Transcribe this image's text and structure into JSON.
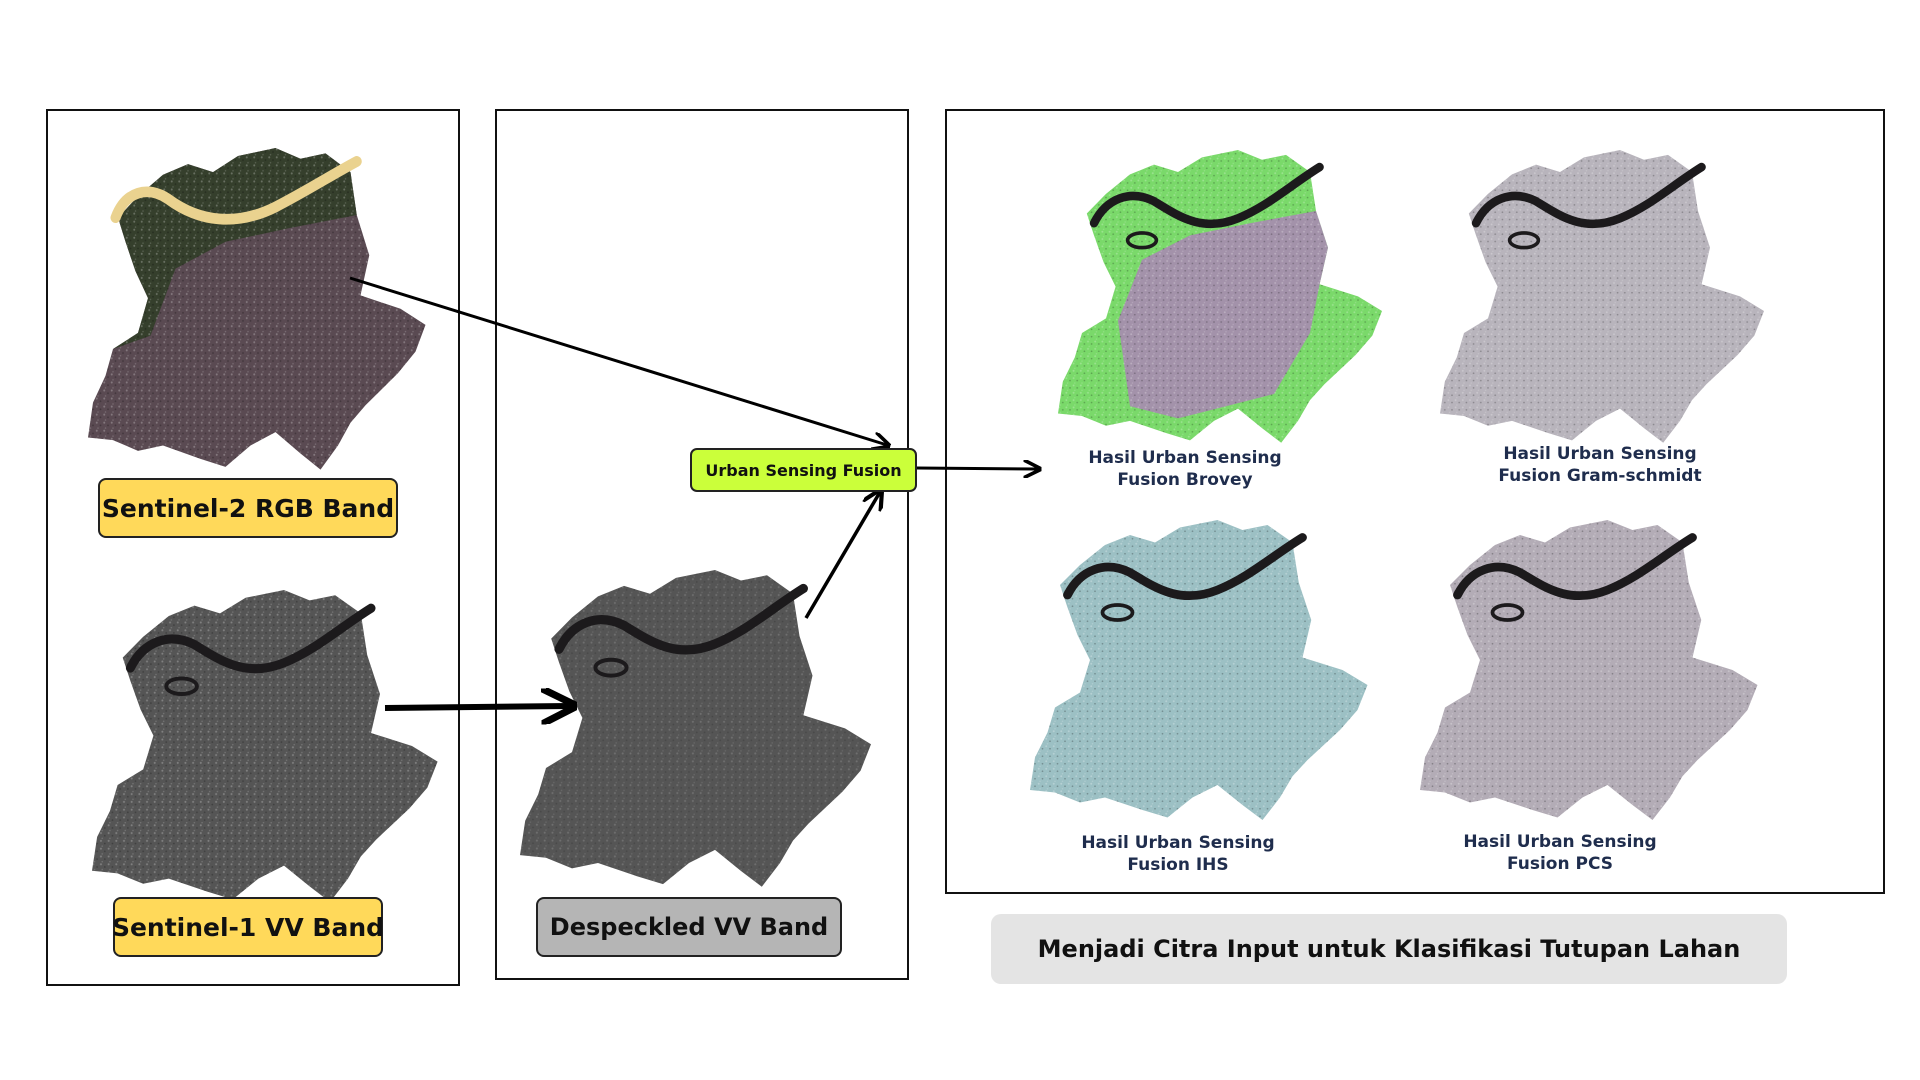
{
  "labels": {
    "sentinel2": "Sentinel-2 RGB Band",
    "sentinel1": "Sentinel-1 VV Band",
    "despeckled": "Despeckled VV Band",
    "fusion": "Urban Sensing Fusion"
  },
  "results": [
    {
      "line1": "Hasil Urban Sensing",
      "line2": "Fusion Brovey"
    },
    {
      "line1": "Hasil Urban Sensing",
      "line2": "Fusion Gram-schmidt"
    },
    {
      "line1": "Hasil Urban Sensing",
      "line2": "Fusion IHS"
    },
    {
      "line1": "Hasil Urban Sensing",
      "line2": "Fusion PCS"
    }
  ],
  "banner": "Menjadi Citra Input untuk Klasifikasi Tutupan Lahan",
  "colors": {
    "sentinel_label": "#ffd95a",
    "despeckled_label": "#b5b5b5",
    "fusion_label": "#cbff3a",
    "banner_bg": "#e4e4e4",
    "caption_text": "#1f2d4d",
    "river_s2": "#ead28f",
    "map_rgb": "#5a4a52",
    "map_rgb_forest": "#2f3d26",
    "map_sar": "#555555",
    "map_brovey": "#7ad96a",
    "map_brovey_urban": "#b27ac0",
    "map_gs": "#b8b4bc",
    "map_ihs": "#9cc0c4",
    "map_pcs": "#b3acb6",
    "river_dark": "#1c1a1c"
  }
}
